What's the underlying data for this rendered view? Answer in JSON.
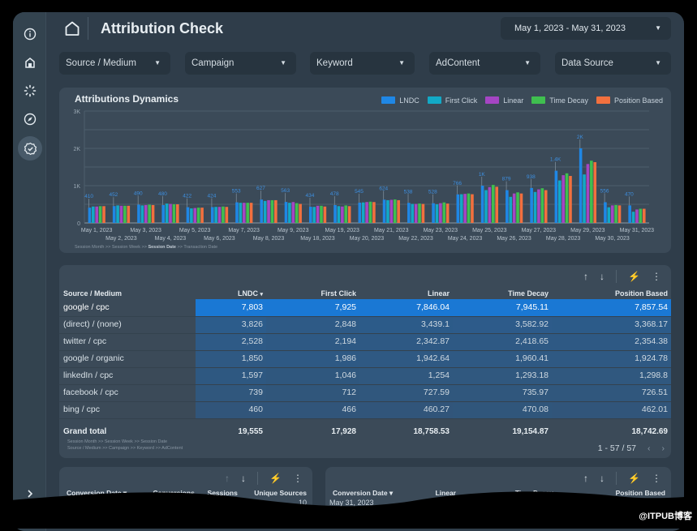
{
  "header": {
    "title": "Attribution Check",
    "date_range": "May 1, 2023 - May 31, 2023"
  },
  "sidebar": {
    "items": [
      {
        "icon": "info-icon"
      },
      {
        "icon": "home-icon"
      },
      {
        "icon": "loader-icon"
      },
      {
        "icon": "compass-icon"
      },
      {
        "icon": "verified-badge-icon",
        "active": true
      },
      {
        "icon": "chevron-right-icon"
      }
    ]
  },
  "filters": [
    "Source / Medium",
    "Campaign",
    "Keyword",
    "AdContent",
    "Data Source"
  ],
  "chart_data": {
    "type": "bar",
    "title": "Attributions Dynamics",
    "legend_position": "top-right",
    "grid": true,
    "ylim": [
      0,
      3000
    ],
    "yticks": [
      "0",
      "1K",
      "2K",
      "3K"
    ],
    "categories": [
      "May 1, 2023",
      "May 2, 2023",
      "May 3, 2023",
      "May 4, 2023",
      "May 5, 2023",
      "May 6, 2023",
      "May 7, 2023",
      "May 8, 2023",
      "May 9, 2023",
      "May 18, 2023",
      "May 19, 2023",
      "May 20, 2023",
      "May 21, 2023",
      "May 22, 2023",
      "May 23, 2023",
      "May 24, 2023",
      "May 25, 2023",
      "May 26, 2023",
      "May 27, 2023",
      "May 28, 2023",
      "May 29, 2023",
      "May 30, 2023",
      "May 31, 2023"
    ],
    "data_labels": [
      "410",
      "452",
      "490",
      "480",
      "422",
      "424",
      "553",
      "627",
      "563",
      "434",
      "478",
      "545",
      "624",
      "538",
      "528",
      "766",
      "1K",
      "879",
      "938",
      "1.4K",
      "2K",
      "556",
      "470"
    ],
    "series": [
      {
        "name": "LNDC",
        "color": "#1f87e5",
        "values": [
          410,
          452,
          490,
          480,
          422,
          424,
          553,
          627,
          563,
          434,
          478,
          545,
          624,
          538,
          528,
          766,
          1000,
          879,
          938,
          1400,
          2000,
          556,
          470
        ]
      },
      {
        "name": "First Click",
        "color": "#12a9c6",
        "values": [
          440,
          470,
          470,
          520,
          390,
          430,
          540,
          590,
          540,
          430,
          450,
          550,
          610,
          510,
          500,
          770,
          880,
          700,
          830,
          1140,
          1300,
          420,
          300
        ]
      },
      {
        "name": "Linear",
        "color": "#a545c4",
        "values": [
          440,
          460,
          480,
          510,
          400,
          430,
          540,
          610,
          560,
          460,
          440,
          560,
          620,
          510,
          530,
          780,
          960,
          790,
          900,
          1280,
          1580,
          470,
          360
        ]
      },
      {
        "name": "Time Decay",
        "color": "#3fbf4f",
        "values": [
          450,
          460,
          490,
          500,
          410,
          440,
          540,
          610,
          530,
          460,
          470,
          570,
          630,
          520,
          550,
          790,
          1020,
          820,
          930,
          1330,
          1670,
          480,
          380
        ]
      },
      {
        "name": "Position Based",
        "color": "#f2703e",
        "values": [
          450,
          460,
          480,
          500,
          410,
          430,
          540,
          610,
          510,
          440,
          450,
          560,
          610,
          510,
          520,
          770,
          970,
          790,
          880,
          1260,
          1630,
          470,
          380
        ]
      }
    ],
    "drill_path": [
      "Session Month",
      ">>",
      "Session Week",
      ">>",
      "Session Date",
      ">>",
      "Transaction Date"
    ]
  },
  "table": {
    "columns": [
      "Source / Medium",
      "LNDC",
      "First Click",
      "Linear",
      "Time Decay",
      "Position Based"
    ],
    "sort_indicator": "▾",
    "rows": [
      [
        "google / cpc",
        "7,803",
        "7,925",
        "7,846.04",
        "7,945.11",
        "7,857.54"
      ],
      [
        "(direct) / (none)",
        "3,826",
        "2,848",
        "3,439.1",
        "3,582.92",
        "3,368.17"
      ],
      [
        "twitter / cpc",
        "2,528",
        "2,194",
        "2,342.87",
        "2,418.65",
        "2,354.38"
      ],
      [
        "google / organic",
        "1,850",
        "1,986",
        "1,942.64",
        "1,960.41",
        "1,924.78"
      ],
      [
        "linkedIn / cpc",
        "1,597",
        "1,046",
        "1,254",
        "1,293.18",
        "1,298.8"
      ],
      [
        "facebook / cpc",
        "739",
        "712",
        "727.59",
        "735.97",
        "726.51"
      ],
      [
        "bing / cpc",
        "460",
        "466",
        "460.27",
        "470.08",
        "462.01"
      ]
    ],
    "total": [
      "Grand total",
      "19,555",
      "17,928",
      "18,758.53",
      "19,154.87",
      "18,742.69"
    ],
    "drill_path_1": "Session Month >> Session Week >> Session Date",
    "drill_path_2": "Source / Medium >> Campaign >> Keyword >> AdContent",
    "pagination": "1 - 57 / 57",
    "highlight_color": "#1a78d4"
  },
  "bottom_left": {
    "columns": [
      "Conversion Date ▾",
      "Conversions",
      "Sessions",
      "Unique Sources"
    ],
    "partial_value": "10"
  },
  "bottom_right": {
    "columns": [
      "Conversion Date ▾",
      "Linear",
      "Time Decay",
      "Position Based"
    ],
    "partial_row": "May 31, 2023"
  },
  "watermark": "@ITPUB博客"
}
